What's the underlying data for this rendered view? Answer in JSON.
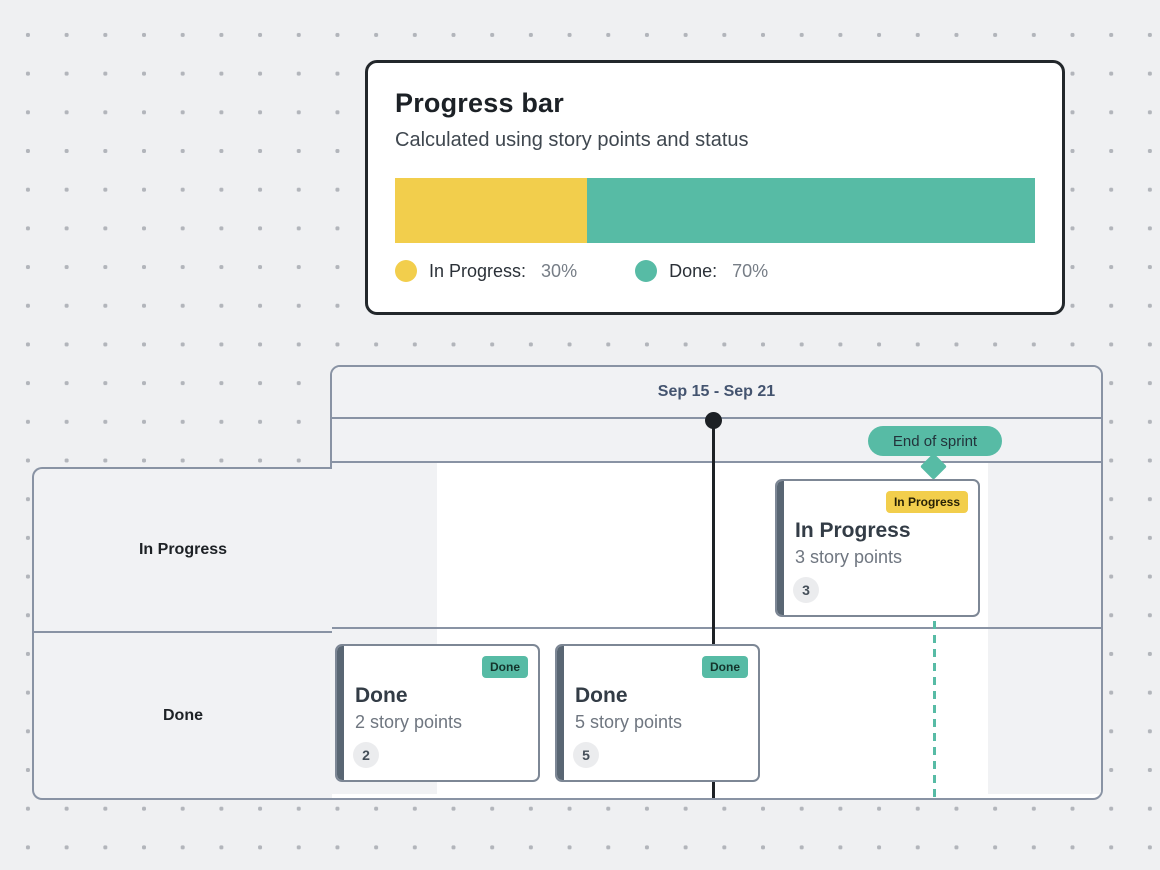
{
  "colors": {
    "in_progress_yellow": "#F2CE4C",
    "done_teal": "#57BBA5",
    "dark_line": "#1D2125",
    "table_border": "#8993A4",
    "panel_gray": "#F1F2F4"
  },
  "progress_card": {
    "title": "Progress bar",
    "subtitle": "Calculated using story points and status",
    "legend": [
      {
        "label": "In Progress:",
        "value": "30%",
        "color": "#F2CE4C"
      },
      {
        "label": "Done:",
        "value": "70%",
        "color": "#57BBA5"
      }
    ]
  },
  "chart_data": {
    "type": "bar",
    "title": "Progress bar",
    "subtitle": "Calculated using story points and status",
    "categories": [
      "In Progress",
      "Done"
    ],
    "values": [
      30,
      70
    ],
    "unit": "%",
    "legend_position": "bottom",
    "orientation": "horizontal-stacked"
  },
  "timeline": {
    "header": "Sep 15 - Sep 21",
    "end_of_sprint_label": "End of sprint",
    "rows": [
      {
        "label": "In Progress",
        "cards": [
          {
            "status_badge": "In Progress",
            "title": "In Progress",
            "subtitle": "3 story points",
            "points": "3"
          }
        ]
      },
      {
        "label": "Done",
        "cards": [
          {
            "status_badge": "Done",
            "title": "Done",
            "subtitle": "2 story points",
            "points": "2"
          },
          {
            "status_badge": "Done",
            "title": "Done",
            "subtitle": "5 story points",
            "points": "5"
          }
        ]
      }
    ]
  }
}
